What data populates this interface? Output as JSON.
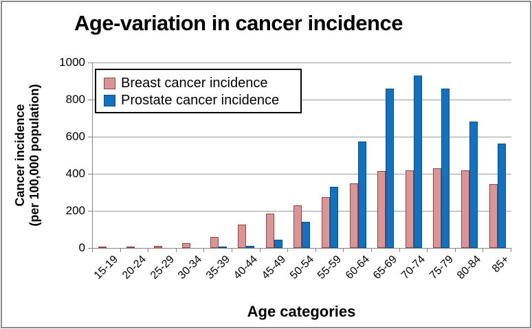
{
  "chart_data": {
    "type": "bar",
    "title": "Age-variation in cancer incidence",
    "xlabel": "Age categories",
    "ylabel_line1": "Cancer incidence",
    "ylabel_line2": "(per 100,000 population)",
    "categories": [
      "15-19",
      "20-24",
      "25-29",
      "30-34",
      "35-39",
      "40-44",
      "45-49",
      "50-54",
      "55-59",
      "60-64",
      "65-69",
      "70-74",
      "75-79",
      "80-84",
      "85+"
    ],
    "series": [
      {
        "name": "Breast cancer incidence",
        "color": "#D99694",
        "border_color": "#8E4645",
        "values": [
          5,
          5,
          10,
          25,
          60,
          125,
          185,
          230,
          275,
          350,
          415,
          420,
          430,
          420,
          345
        ]
      },
      {
        "name": "Prostate cancer incidence",
        "color": "#1272C2",
        "border_color": "#0D4D85",
        "values": [
          0,
          0,
          0,
          0,
          3,
          10,
          45,
          140,
          330,
          575,
          860,
          930,
          860,
          680,
          565
        ]
      }
    ],
    "ylim": [
      0,
      1000
    ],
    "yticks": [
      0,
      200,
      400,
      600,
      800,
      1000
    ],
    "grid": true,
    "legend_position": "top-left-inside"
  },
  "colors": {
    "gridline": "#9a9a9a",
    "axis": "#848484",
    "page_border": "#8a8a8a",
    "background": "#FFFFFF",
    "text": "#000000"
  }
}
